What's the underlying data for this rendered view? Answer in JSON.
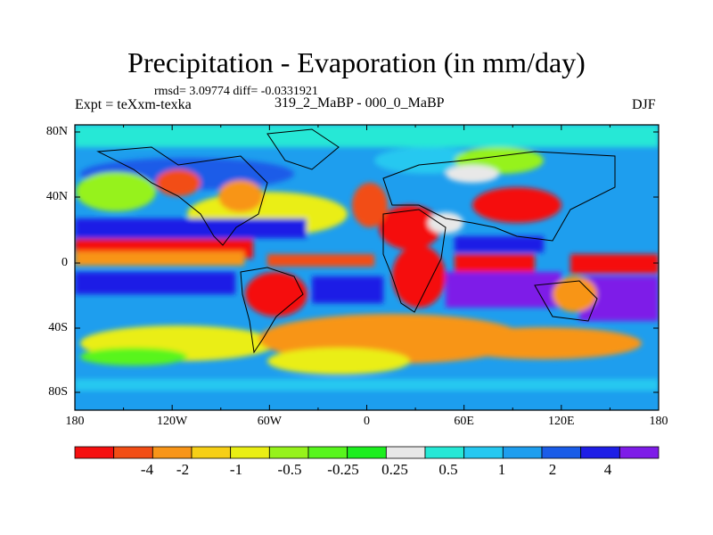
{
  "title": "Precipitation - Evaporation (in mm/day)",
  "stats": "rmsd= 3.09774  diff= -0.0331921",
  "experiment": "Expt = teXxm-texka",
  "subtitle": "319_2_MaBP - 000_0_MaBP",
  "season": "DJF",
  "map": {
    "x_ticks": [
      "180",
      "120W",
      "60W",
      "0",
      "60E",
      "120E",
      "180"
    ],
    "y_ticks": [
      "80N",
      "40N",
      "0",
      "40S",
      "80S"
    ]
  },
  "colorbar": {
    "colors": [
      "#f50f0f",
      "#f24d15",
      "#f89518",
      "#f6cf16",
      "#eaee14",
      "#96f21b",
      "#58f51d",
      "#1cee1e",
      "#e8e8e8",
      "#26e8d6",
      "#26c8f0",
      "#1e9eee",
      "#1a5ce8",
      "#1e1ee6",
      "#7e1ce8"
    ],
    "labels": [
      "-4",
      "-2",
      "-1",
      "-0.5",
      "-0.25",
      "0.25",
      "0.5",
      "1",
      "2",
      "4"
    ]
  },
  "colors": {
    "land_outline": "#000000",
    "ocean_deep": "#1e1ee6",
    "ocean_mid": "#1a5ce8",
    "dry_red": "#f50f0f"
  }
}
